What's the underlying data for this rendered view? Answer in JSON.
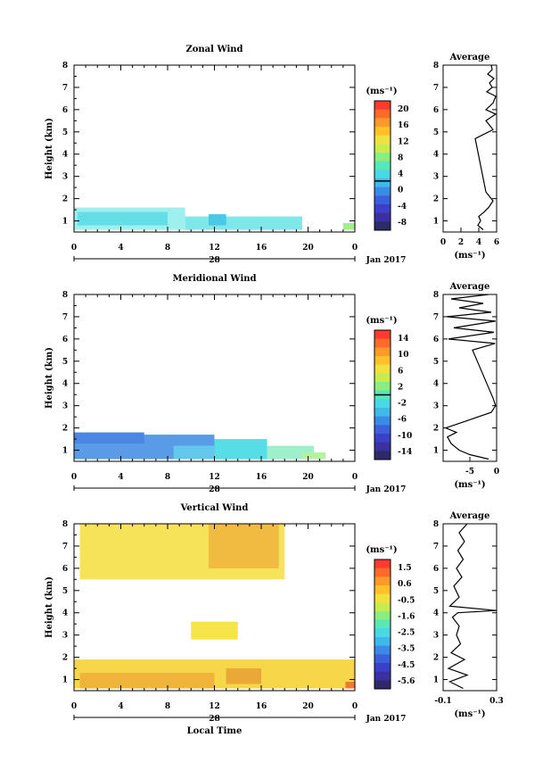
{
  "shared": {
    "height_label": "Height (km)",
    "y_ticks": [
      "1",
      "2",
      "3",
      "4",
      "5",
      "6",
      "7",
      "8"
    ],
    "time_ticks": [
      "0",
      "4",
      "8",
      "12",
      "16",
      "20",
      "0"
    ],
    "date_day": "28",
    "date_month": "Jan 2017",
    "unit": "(ms⁻¹)",
    "average_title": "Average",
    "xlabel": "Local Time"
  },
  "chart_data": [
    {
      "type": "heatmap",
      "title": "Zonal Wind",
      "ylabel": "Height (km)",
      "xlim": [
        0,
        24
      ],
      "ylim": [
        0.5,
        8
      ],
      "colorbar_ticks": [
        "20",
        "16",
        "12",
        "8",
        "4",
        "0",
        "-4",
        "-8"
      ],
      "regions": [
        {
          "t0": 0.0,
          "t1": 9.5,
          "h0": 0.6,
          "h1": 1.6,
          "value": 5,
          "color": "#9ef0ee"
        },
        {
          "t0": 0.3,
          "t1": 8.0,
          "h0": 0.8,
          "h1": 1.4,
          "value": 4,
          "color": "#63dde6"
        },
        {
          "t0": 9.5,
          "t1": 19.5,
          "h0": 0.6,
          "h1": 1.2,
          "value": 4,
          "color": "#7fe6ea"
        },
        {
          "t0": 11.5,
          "t1": 13.0,
          "h0": 0.8,
          "h1": 1.3,
          "value": 3,
          "color": "#4ac8e6"
        },
        {
          "t0": 23.0,
          "t1": 24.0,
          "h0": 0.6,
          "h1": 0.9,
          "value": 9,
          "color": "#9ef08a"
        }
      ]
    },
    {
      "type": "line",
      "title": "Average",
      "xlabel": "(ms⁻¹)",
      "xlim": [
        0,
        6
      ],
      "ylim": [
        0.5,
        8
      ],
      "x_ticks": [
        "0",
        "2",
        "4",
        "6"
      ],
      "x": [
        4.5,
        3.9,
        4.2,
        4.0,
        4.6,
        5.1,
        5.6,
        4.8,
        3.6,
        5.6,
        4.8,
        5.9,
        4.8,
        5.6,
        5.9,
        4.9,
        5.5,
        5.2,
        5.7,
        5.0,
        5.5,
        5.4
      ],
      "y": [
        0.6,
        0.8,
        1.0,
        1.2,
        1.4,
        1.6,
        1.9,
        2.3,
        4.7,
        5.1,
        5.5,
        5.8,
        6.0,
        6.3,
        6.6,
        6.8,
        7.0,
        7.2,
        7.4,
        7.6,
        7.8,
        8.0
      ]
    },
    {
      "type": "heatmap",
      "title": "Meridional Wind",
      "ylabel": "Height (km)",
      "xlim": [
        0,
        24
      ],
      "ylim": [
        0.5,
        8
      ],
      "colorbar_ticks": [
        "14",
        "10",
        "6",
        "2",
        "-2",
        "-6",
        "-10",
        "-14"
      ],
      "regions": [
        {
          "t0": 0.0,
          "t1": 12.0,
          "h0": 0.6,
          "h1": 1.7,
          "value": -9,
          "color": "#5a9be8"
        },
        {
          "t0": 0.0,
          "t1": 6.0,
          "h0": 1.3,
          "h1": 1.8,
          "value": -10,
          "color": "#4a86e2"
        },
        {
          "t0": 8.5,
          "t1": 12.5,
          "h0": 0.6,
          "h1": 1.2,
          "value": -6,
          "color": "#63c7ee"
        },
        {
          "t0": 12.0,
          "t1": 16.5,
          "h0": 0.6,
          "h1": 1.5,
          "value": -3,
          "color": "#56dde6"
        },
        {
          "t0": 16.5,
          "t1": 20.5,
          "h0": 0.6,
          "h1": 1.2,
          "value": 0,
          "color": "#9ef0ca"
        },
        {
          "t0": 19.5,
          "t1": 21.5,
          "h0": 0.6,
          "h1": 0.9,
          "value": 2,
          "color": "#b5f2a0"
        }
      ]
    },
    {
      "type": "line",
      "title": "Average",
      "xlabel": "(ms⁻¹)",
      "xlim": [
        -10,
        0
      ],
      "ylim": [
        0.5,
        8
      ],
      "x_ticks": [
        "-5",
        "0"
      ],
      "x": [
        -1.5,
        -5.0,
        -7.0,
        -8.5,
        -9.2,
        -7.5,
        -9.5,
        -1.0,
        -0.2,
        -0.6,
        -4.5,
        -0.3,
        -9.0,
        -0.5,
        -8.0,
        -0.2,
        -9.3,
        -1.0,
        -7.0,
        -2.5,
        -8.5,
        -1.5
      ],
      "y": [
        0.6,
        0.8,
        1.0,
        1.3,
        1.6,
        1.8,
        2.0,
        2.7,
        3.0,
        3.3,
        5.5,
        5.8,
        6.0,
        6.3,
        6.5,
        6.8,
        7.0,
        7.2,
        7.4,
        7.6,
        7.8,
        8.0
      ]
    },
    {
      "type": "heatmap",
      "title": "Vertical Wind",
      "ylabel": "Height (km)",
      "xlim": [
        0,
        24
      ],
      "ylim": [
        0.5,
        8
      ],
      "colorbar_ticks": [
        "1.5",
        "0.6",
        "-0.5",
        "-1.6",
        "-2.5",
        "-3.5",
        "-4.5",
        "-5.6"
      ],
      "regions": [
        {
          "t0": 0.0,
          "t1": 24.0,
          "h0": 0.6,
          "h1": 1.9,
          "value": 0.3,
          "color": "#f7d64a"
        },
        {
          "t0": 0.5,
          "t1": 12.0,
          "h0": 0.6,
          "h1": 1.3,
          "value": 0.8,
          "color": "#f0b43a"
        },
        {
          "t0": 13.0,
          "t1": 16.0,
          "h0": 0.8,
          "h1": 1.5,
          "value": 0.9,
          "color": "#e9a838"
        },
        {
          "t0": 23.2,
          "t1": 24.0,
          "h0": 0.6,
          "h1": 0.9,
          "value": 1.4,
          "color": "#ef7a30"
        },
        {
          "t0": 10.0,
          "t1": 14.0,
          "h0": 2.8,
          "h1": 3.6,
          "value": 0.4,
          "color": "#f7e34a"
        },
        {
          "t0": 0.5,
          "t1": 18.0,
          "h0": 5.5,
          "h1": 8.0,
          "value": 0.2,
          "color": "#f7e35a"
        },
        {
          "t0": 11.5,
          "t1": 17.5,
          "h0": 6.0,
          "h1": 8.0,
          "value": 0.7,
          "color": "#f0bb40"
        }
      ]
    },
    {
      "type": "line",
      "title": "Average",
      "xlabel": "(ms⁻¹)",
      "xlim": [
        -0.1,
        0.3
      ],
      "ylim": [
        0.5,
        8
      ],
      "x_ticks": [
        "-0.1",
        "0.3"
      ],
      "x": [
        0.05,
        -0.05,
        0.08,
        -0.06,
        0.06,
        -0.04,
        0.03,
        0.0,
        0.02,
        -0.03,
        0.01,
        0.3,
        -0.05,
        0.02,
        -0.02,
        0.04,
        0.0,
        0.05,
        0.01,
        0.06,
        0.02,
        0.08
      ],
      "y": [
        0.6,
        0.9,
        1.2,
        1.5,
        1.9,
        2.2,
        2.6,
        3.0,
        3.4,
        3.8,
        4.0,
        4.1,
        4.3,
        4.7,
        5.2,
        5.6,
        6.0,
        6.4,
        6.8,
        7.2,
        7.6,
        8.0
      ]
    }
  ],
  "colorbars": [
    {
      "colors": [
        "#ff3b2f",
        "#ff6a2a",
        "#ff9a2a",
        "#ffc02a",
        "#f0e040",
        "#c8ec50",
        "#8cec80",
        "#58e8b8",
        "#4ad8e6",
        "#40b8ea",
        "#3a8ae6",
        "#3a60dc",
        "#3a40c8",
        "#3a30a0",
        "#2e2a6a"
      ],
      "line_fraction": 0.62
    },
    {
      "colors": [
        "#ff3b2f",
        "#ff6a2a",
        "#ff9a2a",
        "#ffc02a",
        "#f0e040",
        "#c8ec50",
        "#8cec80",
        "#58e8b8",
        "#4ad8e6",
        "#40b8ea",
        "#3a8ae6",
        "#3a60dc",
        "#3a40c8",
        "#3a30a0",
        "#2e2a6a"
      ],
      "line_fraction": 0.5
    },
    {
      "colors": [
        "#ff3b2f",
        "#ff6a2a",
        "#ff9a2a",
        "#ffc02a",
        "#f0e040",
        "#c8ec50",
        "#8cec80",
        "#58e8b8",
        "#4ad8e6",
        "#40b8ea",
        "#3a8ae6",
        "#3a60dc",
        "#3a40c8",
        "#3a30a0",
        "#2e2a6a"
      ],
      "line_fraction": null
    }
  ]
}
